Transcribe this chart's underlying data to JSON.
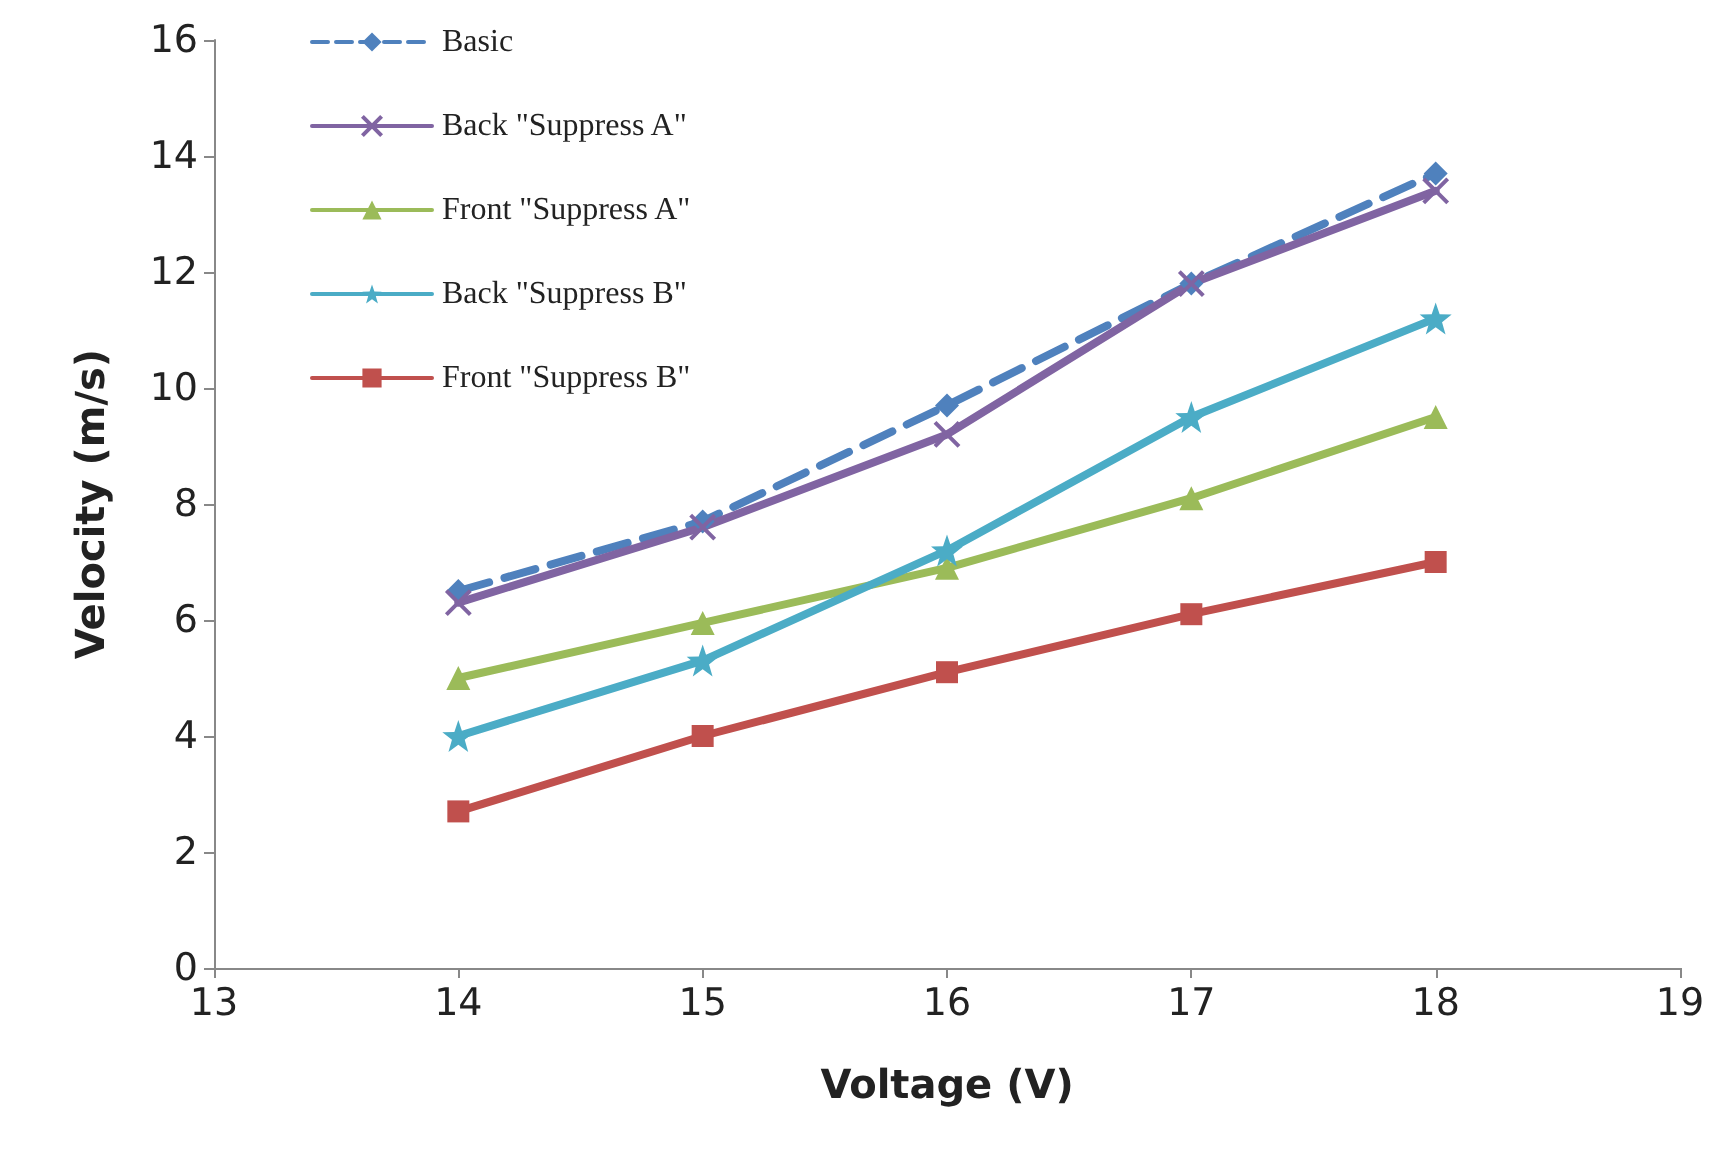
{
  "chart_data": {
    "type": "line",
    "xlabel": "Voltage (V)",
    "ylabel": "Velocity (m/s)",
    "x": [
      14,
      15,
      16,
      17,
      18
    ],
    "xlim": [
      13,
      19
    ],
    "xticks": [
      13,
      14,
      15,
      16,
      17,
      18,
      19
    ],
    "ylim": [
      0,
      16
    ],
    "yticks": [
      0,
      2,
      4,
      6,
      8,
      10,
      12,
      14,
      16
    ],
    "legend": "top left",
    "series": [
      {
        "name": "Basic",
        "color": "#4f81bd",
        "marker": "diamond",
        "line_style": "dashed",
        "values": [
          6.5,
          7.7,
          9.7,
          11.8,
          13.7
        ]
      },
      {
        "name": "Back \"Suppress A\"",
        "color": "#8064a2",
        "marker": "cross",
        "line_style": "solid",
        "values": [
          6.3,
          7.6,
          9.2,
          11.8,
          13.4
        ]
      },
      {
        "name": "Front \"Suppress A\"",
        "color": "#9bbb59",
        "marker": "triangle",
        "line_style": "solid",
        "values": [
          5.0,
          5.95,
          6.9,
          8.1,
          9.5
        ]
      },
      {
        "name": "Back \"Suppress B\"",
        "color": "#4bacc6",
        "marker": "star",
        "line_style": "solid",
        "values": [
          4.0,
          5.3,
          7.2,
          9.5,
          11.2
        ]
      },
      {
        "name": "Front \"Suppress B\"",
        "color": "#c0504d",
        "marker": "square",
        "line_style": "solid",
        "values": [
          2.7,
          4.0,
          5.1,
          6.1,
          7.0
        ]
      }
    ]
  }
}
